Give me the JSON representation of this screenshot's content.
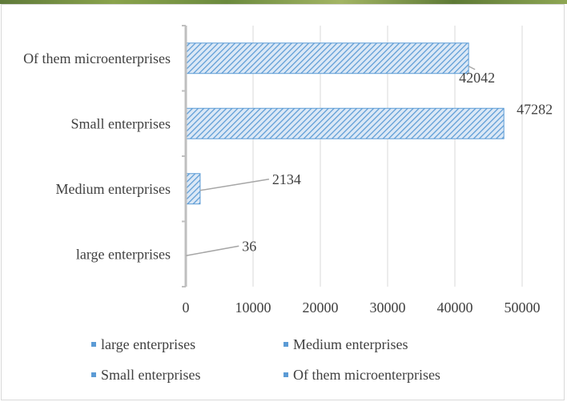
{
  "chart_data": {
    "type": "bar",
    "orientation": "horizontal",
    "categories": [
      "large enterprises",
      "Medium enterprises",
      "Small enterprises",
      "Of them microenterprises"
    ],
    "values": [
      36,
      2134,
      47282,
      42042
    ],
    "data_labels": [
      "36",
      "2134",
      "47282",
      "42042"
    ],
    "xlim": [
      0,
      50000
    ],
    "x_ticks": [
      0,
      10000,
      20000,
      30000,
      40000,
      50000
    ],
    "x_tick_labels": [
      "0",
      "10000",
      "20000",
      "30000",
      "40000",
      "50000"
    ],
    "grid": true,
    "legend": {
      "placement": "bottom",
      "entries": [
        "large enterprises",
        "Medium enterprises",
        "Small enterprises",
        "Of them microenterprises"
      ]
    },
    "bar_fill": "#9dc3e6",
    "bar_stroke": "#5b9bd5",
    "bar_pattern": "diagonal-hatch",
    "title": "",
    "xlabel": "",
    "ylabel": ""
  }
}
